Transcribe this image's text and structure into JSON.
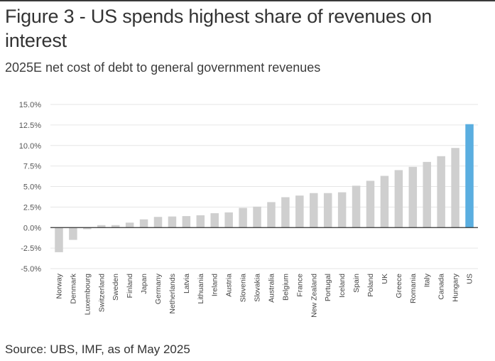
{
  "title": "Figure 3 - US spends highest share of revenues on interest",
  "subtitle": "2025E net cost of debt to general government revenues",
  "source": "Source: UBS, IMF, as of May 2025",
  "colors": {
    "bar_default": "#cfcfcf",
    "bar_highlight": "#5aaee0",
    "gridline": "#e6e6e6",
    "zero_line": "#333333"
  },
  "chart_data": {
    "type": "bar",
    "title": "Figure 3 - US spends highest share of revenues on interest",
    "subtitle": "2025E net cost of debt to general government revenues",
    "xlabel": "",
    "ylabel": "",
    "ylim": [
      -5.0,
      15.0
    ],
    "y_ticks": [
      -5.0,
      -2.5,
      0.0,
      2.5,
      5.0,
      7.5,
      10.0,
      12.5,
      15.0
    ],
    "y_tick_labels": [
      "-5.0%",
      "-2.5%",
      "0.0%",
      "2.5%",
      "5.0%",
      "7.5%",
      "10.0%",
      "12.5%",
      "15.0%"
    ],
    "grid": true,
    "legend": "none",
    "unit": "%",
    "highlight": "US",
    "categories": [
      "Norway",
      "Denmark",
      "Luxembourg",
      "Switzerland",
      "Sweden",
      "Finland",
      "Japan",
      "Germany",
      "Netherlands",
      "Latvia",
      "Lithuania",
      "Ireland",
      "Austria",
      "Slovenia",
      "Slovakia",
      "Australia",
      "Belgium",
      "France",
      "New Zealand",
      "Portugal",
      "Iceland",
      "Spain",
      "Poland",
      "UK",
      "Greece",
      "Romania",
      "Italy",
      "Canada",
      "Hungary",
      "US"
    ],
    "values": [
      -3.0,
      -1.5,
      -0.2,
      0.3,
      0.3,
      0.6,
      1.0,
      1.3,
      1.35,
      1.4,
      1.5,
      1.75,
      1.85,
      2.4,
      2.55,
      3.1,
      3.7,
      3.9,
      4.2,
      4.2,
      4.3,
      5.1,
      5.7,
      6.3,
      7.0,
      7.4,
      8.0,
      8.7,
      9.7,
      12.6
    ],
    "source": "Source: UBS, IMF, as of May 2025"
  }
}
